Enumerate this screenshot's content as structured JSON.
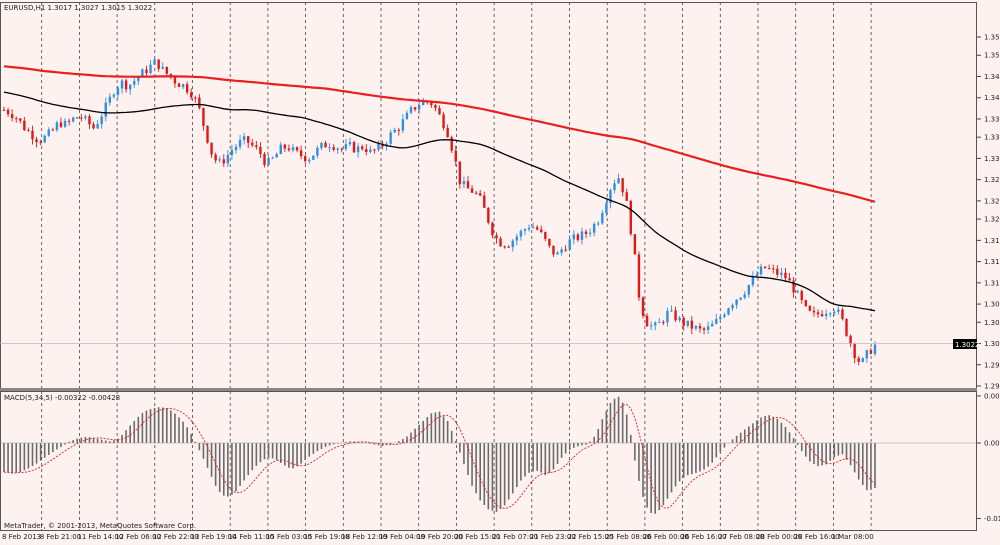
{
  "window": {
    "symbol_label": "EURUSD,H1  1.3017 1.3027 1.3015 1.3022",
    "copyright": "MetaTrader, © 2001-2013, MetaQuotes Software Corp."
  },
  "colors": {
    "background": "#fdf2f0",
    "bull": "#2f8fe0",
    "bear": "#e01818",
    "ma_slow": "#e82020",
    "ma_fast": "#000000",
    "macd_hist": "#6a6a6a",
    "macd_signal": "#e02020",
    "grid": "#444444"
  },
  "chart_data": [
    {
      "type": "candlestick",
      "symbol": "EURUSD",
      "timeframe": "H1",
      "last_price_label": "1.3022",
      "ylim": [
        1.2955,
        1.3535
      ],
      "y_ticks": [
        "1.3530",
        "1.3500",
        "1.3465",
        "1.3430",
        "1.3395",
        "1.3365",
        "1.3330",
        "1.3295",
        "1.3260",
        "1.3230",
        "1.3195",
        "1.3160",
        "1.3125",
        "1.3090",
        "1.3060",
        "1.3025",
        "1.2990",
        "1.2955"
      ],
      "x_ticks": [
        "8 Feb 2013",
        "8 Feb 21:00",
        "11 Feb 14:00",
        "12 Feb 06:00",
        "12 Feb 22:00",
        "13 Feb 19:00",
        "14 Feb 11:00",
        "15 Feb 03:00",
        "15 Feb 19:00",
        "18 Feb 12:00",
        "19 Feb 04:00",
        "19 Feb 20:00",
        "20 Feb 15:00",
        "21 Feb 07:00",
        "21 Feb 23:00",
        "22 Feb 15:00",
        "25 Feb 08:00",
        "26 Feb 00:00",
        "26 Feb 16:00",
        "27 Feb 08:00",
        "28 Feb 00:00",
        "28 Feb 16:00",
        "1 Mar 08:00"
      ],
      "close_path": [
        1.341,
        1.3405,
        1.3395,
        1.338,
        1.337,
        1.336,
        1.3365,
        1.3375,
        1.339,
        1.3385,
        1.3395,
        1.34,
        1.339,
        1.338,
        1.34,
        1.342,
        1.3445,
        1.3455,
        1.345,
        1.346,
        1.347,
        1.348,
        1.349,
        1.3475,
        1.3465,
        1.3455,
        1.345,
        1.344,
        1.342,
        1.338,
        1.334,
        1.332,
        1.333,
        1.3345,
        1.3355,
        1.336,
        1.335,
        1.334,
        1.332,
        1.333,
        1.3345,
        1.335,
        1.334,
        1.3335,
        1.333,
        1.334,
        1.335,
        1.3355,
        1.335,
        1.3345,
        1.335,
        1.3345,
        1.335,
        1.334,
        1.3345,
        1.3355,
        1.337,
        1.338,
        1.3395,
        1.341,
        1.342,
        1.3425,
        1.342,
        1.34,
        1.338,
        1.334,
        1.329,
        1.328,
        1.3275,
        1.326,
        1.323,
        1.32,
        1.319,
        1.319,
        1.32,
        1.321,
        1.322,
        1.3215,
        1.32,
        1.318,
        1.317,
        1.3185,
        1.3195,
        1.32,
        1.3205,
        1.3215,
        1.323,
        1.326,
        1.329,
        1.33,
        1.326,
        1.319,
        1.309,
        1.306,
        1.305,
        1.306,
        1.3075,
        1.307,
        1.306,
        1.3055,
        1.305,
        1.3045,
        1.305,
        1.306,
        1.3075,
        1.309,
        1.31,
        1.311,
        1.3125,
        1.314,
        1.315,
        1.3145,
        1.314,
        1.3135,
        1.312,
        1.31,
        1.308,
        1.307,
        1.3075,
        1.308,
        1.3085,
        1.307,
        1.304,
        1.301,
        1.299,
        1.301,
        1.3022
      ],
      "indicators": [
        "MA-slow (red)",
        "MA-fast (black)"
      ]
    },
    {
      "type": "bar",
      "label": "MACD(5,34,5) -0.00322 -0.00428",
      "ylim": [
        -0.0106,
        0.006
      ],
      "y_ticks": [
        "0.00601",
        "0.00",
        "-0.0104"
      ],
      "histogram_path": [
        -0.004,
        -0.0042,
        -0.004,
        -0.0035,
        -0.0028,
        -0.002,
        -0.0012,
        -0.0005,
        0.0002,
        0.0006,
        0.0008,
        0.0006,
        0.0004,
        0.0002,
        0.0006,
        0.0018,
        0.003,
        0.004,
        0.0044,
        0.0046,
        0.0044,
        0.0036,
        0.0025,
        0.0008,
        -0.0015,
        -0.004,
        -0.0065,
        -0.0075,
        -0.007,
        -0.0055,
        -0.004,
        -0.0028,
        -0.002,
        -0.0022,
        -0.003,
        -0.0036,
        -0.003,
        -0.002,
        -0.0012,
        -0.0006,
        -0.0002,
        0.0,
        0.0002,
        0.0002,
        0.0,
        -0.0002,
        -0.0004,
        -0.0002,
        0.0002,
        0.0008,
        0.0018,
        0.0028,
        0.0038,
        0.004,
        0.0028,
        0.0002,
        -0.003,
        -0.006,
        -0.008,
        -0.0092,
        -0.0095,
        -0.0085,
        -0.0068,
        -0.005,
        -0.004,
        -0.0038,
        -0.0045,
        -0.0035,
        -0.0018,
        -0.0008,
        -0.0004,
        -0.0002,
        0.001,
        0.0035,
        0.0055,
        0.006,
        0.003,
        -0.004,
        -0.0085,
        -0.01,
        -0.009,
        -0.0072,
        -0.0055,
        -0.0045,
        -0.0042,
        -0.0038,
        -0.003,
        -0.0015,
        -0.0002,
        0.0008,
        0.0016,
        0.0024,
        0.0032,
        0.0036,
        0.0032,
        0.0022,
        0.0008,
        -0.001,
        -0.0025,
        -0.0032,
        -0.003,
        -0.002,
        -0.0015,
        -0.003,
        -0.005,
        -0.0065,
        -0.0062
      ]
    }
  ]
}
